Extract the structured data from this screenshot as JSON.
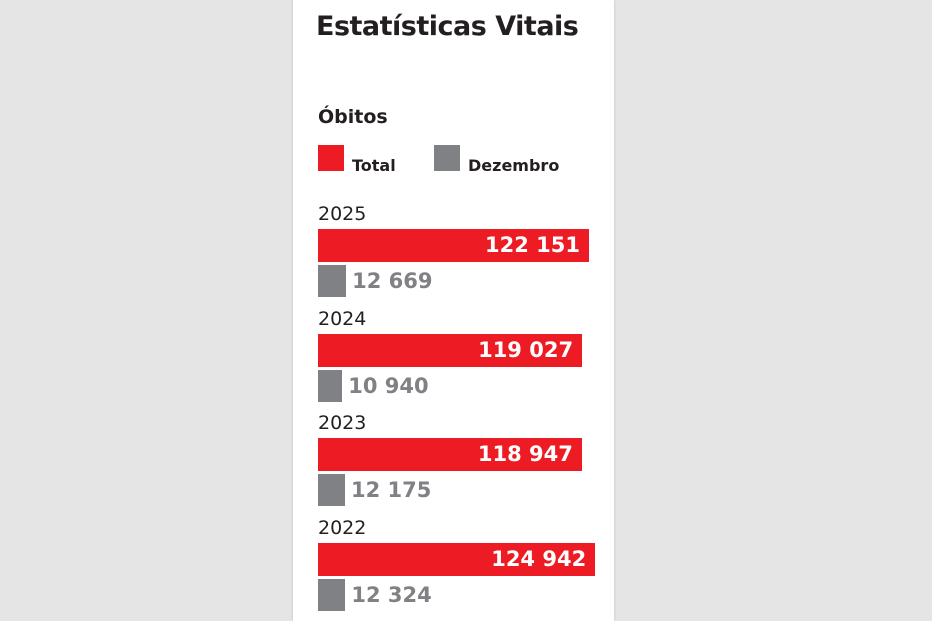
{
  "chart_data": {
    "type": "bar",
    "orientation": "horizontal",
    "title": "Estatísticas Vitais",
    "subtitle": "Óbitos",
    "legend": {
      "position": "top",
      "entries": [
        "Total",
        "Dezembro"
      ]
    },
    "categories": [
      "2025",
      "2024",
      "2023",
      "2022"
    ],
    "series": [
      {
        "name": "Total",
        "values": [
          122151,
          119027,
          118947,
          124942
        ],
        "labels": [
          "122 151",
          "119 027",
          "118 947",
          "124 942"
        ],
        "color": "#ed1c24"
      },
      {
        "name": "Dezembro",
        "values": [
          12669,
          10940,
          12175,
          12324
        ],
        "labels": [
          "12 669",
          "10 940",
          "12 175",
          "12 324"
        ],
        "color": "#808184"
      }
    ],
    "grid": false
  }
}
